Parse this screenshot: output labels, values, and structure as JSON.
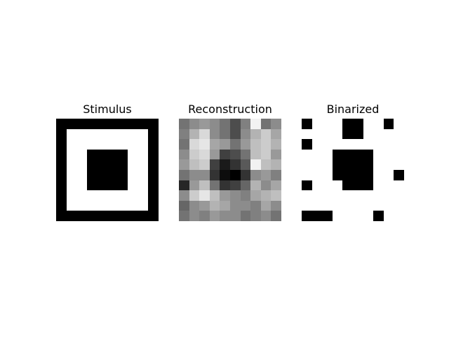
{
  "panels": [
    {
      "title": "Stimulus",
      "pixels": [
        [
          0,
          0,
          0,
          0,
          0,
          0,
          0,
          0,
          0,
          0
        ],
        [
          0,
          1,
          1,
          1,
          1,
          1,
          1,
          1,
          1,
          0
        ],
        [
          0,
          1,
          1,
          1,
          1,
          1,
          1,
          1,
          1,
          0
        ],
        [
          0,
          1,
          1,
          0,
          0,
          0,
          0,
          1,
          1,
          0
        ],
        [
          0,
          1,
          1,
          0,
          0,
          0,
          0,
          1,
          1,
          0
        ],
        [
          0,
          1,
          1,
          0,
          0,
          0,
          0,
          1,
          1,
          0
        ],
        [
          0,
          1,
          1,
          0,
          0,
          0,
          0,
          1,
          1,
          0
        ],
        [
          0,
          1,
          1,
          1,
          1,
          1,
          1,
          1,
          1,
          0
        ],
        [
          0,
          1,
          1,
          1,
          1,
          1,
          1,
          1,
          1,
          0
        ],
        [
          0,
          0,
          0,
          0,
          0,
          0,
          0,
          0,
          0,
          0
        ]
      ]
    },
    {
      "title": "Reconstruction",
      "pixels": [
        [
          0.45,
          0.55,
          0.6,
          0.55,
          0.45,
          0.3,
          0.5,
          0.95,
          0.45,
          0.55
        ],
        [
          0.5,
          0.7,
          0.85,
          0.55,
          0.45,
          0.3,
          0.55,
          0.7,
          0.8,
          0.65
        ],
        [
          0.45,
          0.85,
          0.9,
          0.65,
          0.6,
          0.45,
          0.6,
          0.75,
          0.8,
          0.7
        ],
        [
          0.55,
          0.8,
          0.85,
          0.6,
          0.25,
          0.3,
          0.45,
          0.75,
          0.8,
          0.6
        ],
        [
          0.6,
          0.75,
          0.8,
          0.25,
          0.1,
          0.2,
          0.35,
          0.95,
          0.75,
          0.7
        ],
        [
          0.45,
          0.55,
          0.55,
          0.2,
          0.05,
          0.0,
          0.2,
          0.55,
          0.6,
          0.5
        ],
        [
          0.15,
          0.6,
          0.75,
          0.45,
          0.2,
          0.25,
          0.4,
          0.7,
          0.55,
          0.65
        ],
        [
          0.55,
          0.8,
          0.9,
          0.75,
          0.6,
          0.55,
          0.5,
          0.65,
          0.7,
          0.75
        ],
        [
          0.4,
          0.55,
          0.6,
          0.7,
          0.65,
          0.55,
          0.55,
          0.5,
          0.65,
          0.55
        ],
        [
          0.45,
          0.55,
          0.5,
          0.6,
          0.55,
          0.55,
          0.45,
          0.5,
          0.55,
          0.45
        ]
      ]
    },
    {
      "title": "Binarized",
      "pixels": [
        [
          0,
          1,
          1,
          1,
          0,
          0,
          1,
          1,
          0,
          1
        ],
        [
          1,
          1,
          1,
          1,
          0,
          0,
          1,
          1,
          1,
          1
        ],
        [
          0,
          1,
          1,
          1,
          1,
          1,
          1,
          1,
          1,
          1
        ],
        [
          1,
          1,
          1,
          0,
          0,
          0,
          0,
          1,
          1,
          1
        ],
        [
          1,
          1,
          1,
          0,
          0,
          0,
          0,
          1,
          1,
          1
        ],
        [
          1,
          1,
          1,
          0,
          0,
          0,
          0,
          1,
          1,
          0
        ],
        [
          0,
          1,
          1,
          1,
          0,
          0,
          0,
          1,
          1,
          1
        ],
        [
          1,
          1,
          1,
          1,
          1,
          1,
          1,
          1,
          1,
          1
        ],
        [
          1,
          1,
          1,
          1,
          1,
          1,
          1,
          1,
          1,
          1
        ],
        [
          0,
          0,
          0,
          1,
          1,
          1,
          1,
          0,
          1,
          1
        ]
      ]
    }
  ]
}
